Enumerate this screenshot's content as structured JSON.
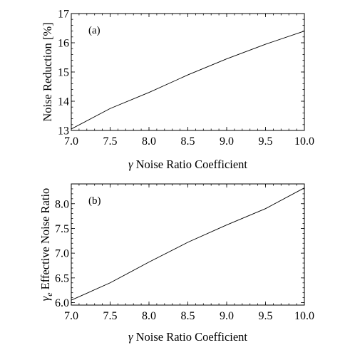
{
  "chart_data": [
    {
      "type": "line",
      "panel_label": "(a)",
      "xlabel_symbol": "γ",
      "xlabel_text": " Noise Ratio Coefficient",
      "ylabel_symbol": "",
      "ylabel_subscript": "",
      "ylabel_text": "Noise Reduction [%]",
      "xlim": [
        7.0,
        10.0
      ],
      "ylim": [
        13,
        17
      ],
      "xticks": [
        7.0,
        7.5,
        8.0,
        8.5,
        9.0,
        9.5,
        10.0
      ],
      "yticks": [
        13,
        14,
        15,
        16,
        17
      ],
      "xtick_labels": [
        "7.0",
        "7.5",
        "8.0",
        "8.5",
        "9.0",
        "9.5",
        "10.0"
      ],
      "ytick_labels": [
        "13",
        "14",
        "15",
        "16",
        "17"
      ],
      "x": [
        7.0,
        7.5,
        8.0,
        8.5,
        9.0,
        9.5,
        10.0
      ],
      "y": [
        13.05,
        13.75,
        14.3,
        14.9,
        15.45,
        15.95,
        16.4
      ]
    },
    {
      "type": "line",
      "panel_label": "(b)",
      "xlabel_symbol": "γ",
      "xlabel_text": " Noise Ratio Coefficient",
      "ylabel_symbol": "γ",
      "ylabel_subscript": "e",
      "ylabel_text": " Effective Noise Ratio",
      "xlim": [
        7.0,
        10.0
      ],
      "ylim": [
        5.95,
        8.4
      ],
      "xticks": [
        7.0,
        7.5,
        8.0,
        8.5,
        9.0,
        9.5,
        10.0
      ],
      "yticks": [
        6.0,
        6.5,
        7.0,
        7.5,
        8.0
      ],
      "xtick_labels": [
        "7.0",
        "7.5",
        "8.0",
        "8.5",
        "9.0",
        "9.5",
        "10.0"
      ],
      "ytick_labels": [
        "6.0",
        "6.5",
        "7.0",
        "7.5",
        "8.0"
      ],
      "x": [
        7.0,
        7.5,
        8.0,
        8.5,
        9.0,
        9.5,
        10.0
      ],
      "y": [
        6.05,
        6.4,
        6.82,
        7.22,
        7.57,
        7.9,
        8.32
      ]
    }
  ]
}
